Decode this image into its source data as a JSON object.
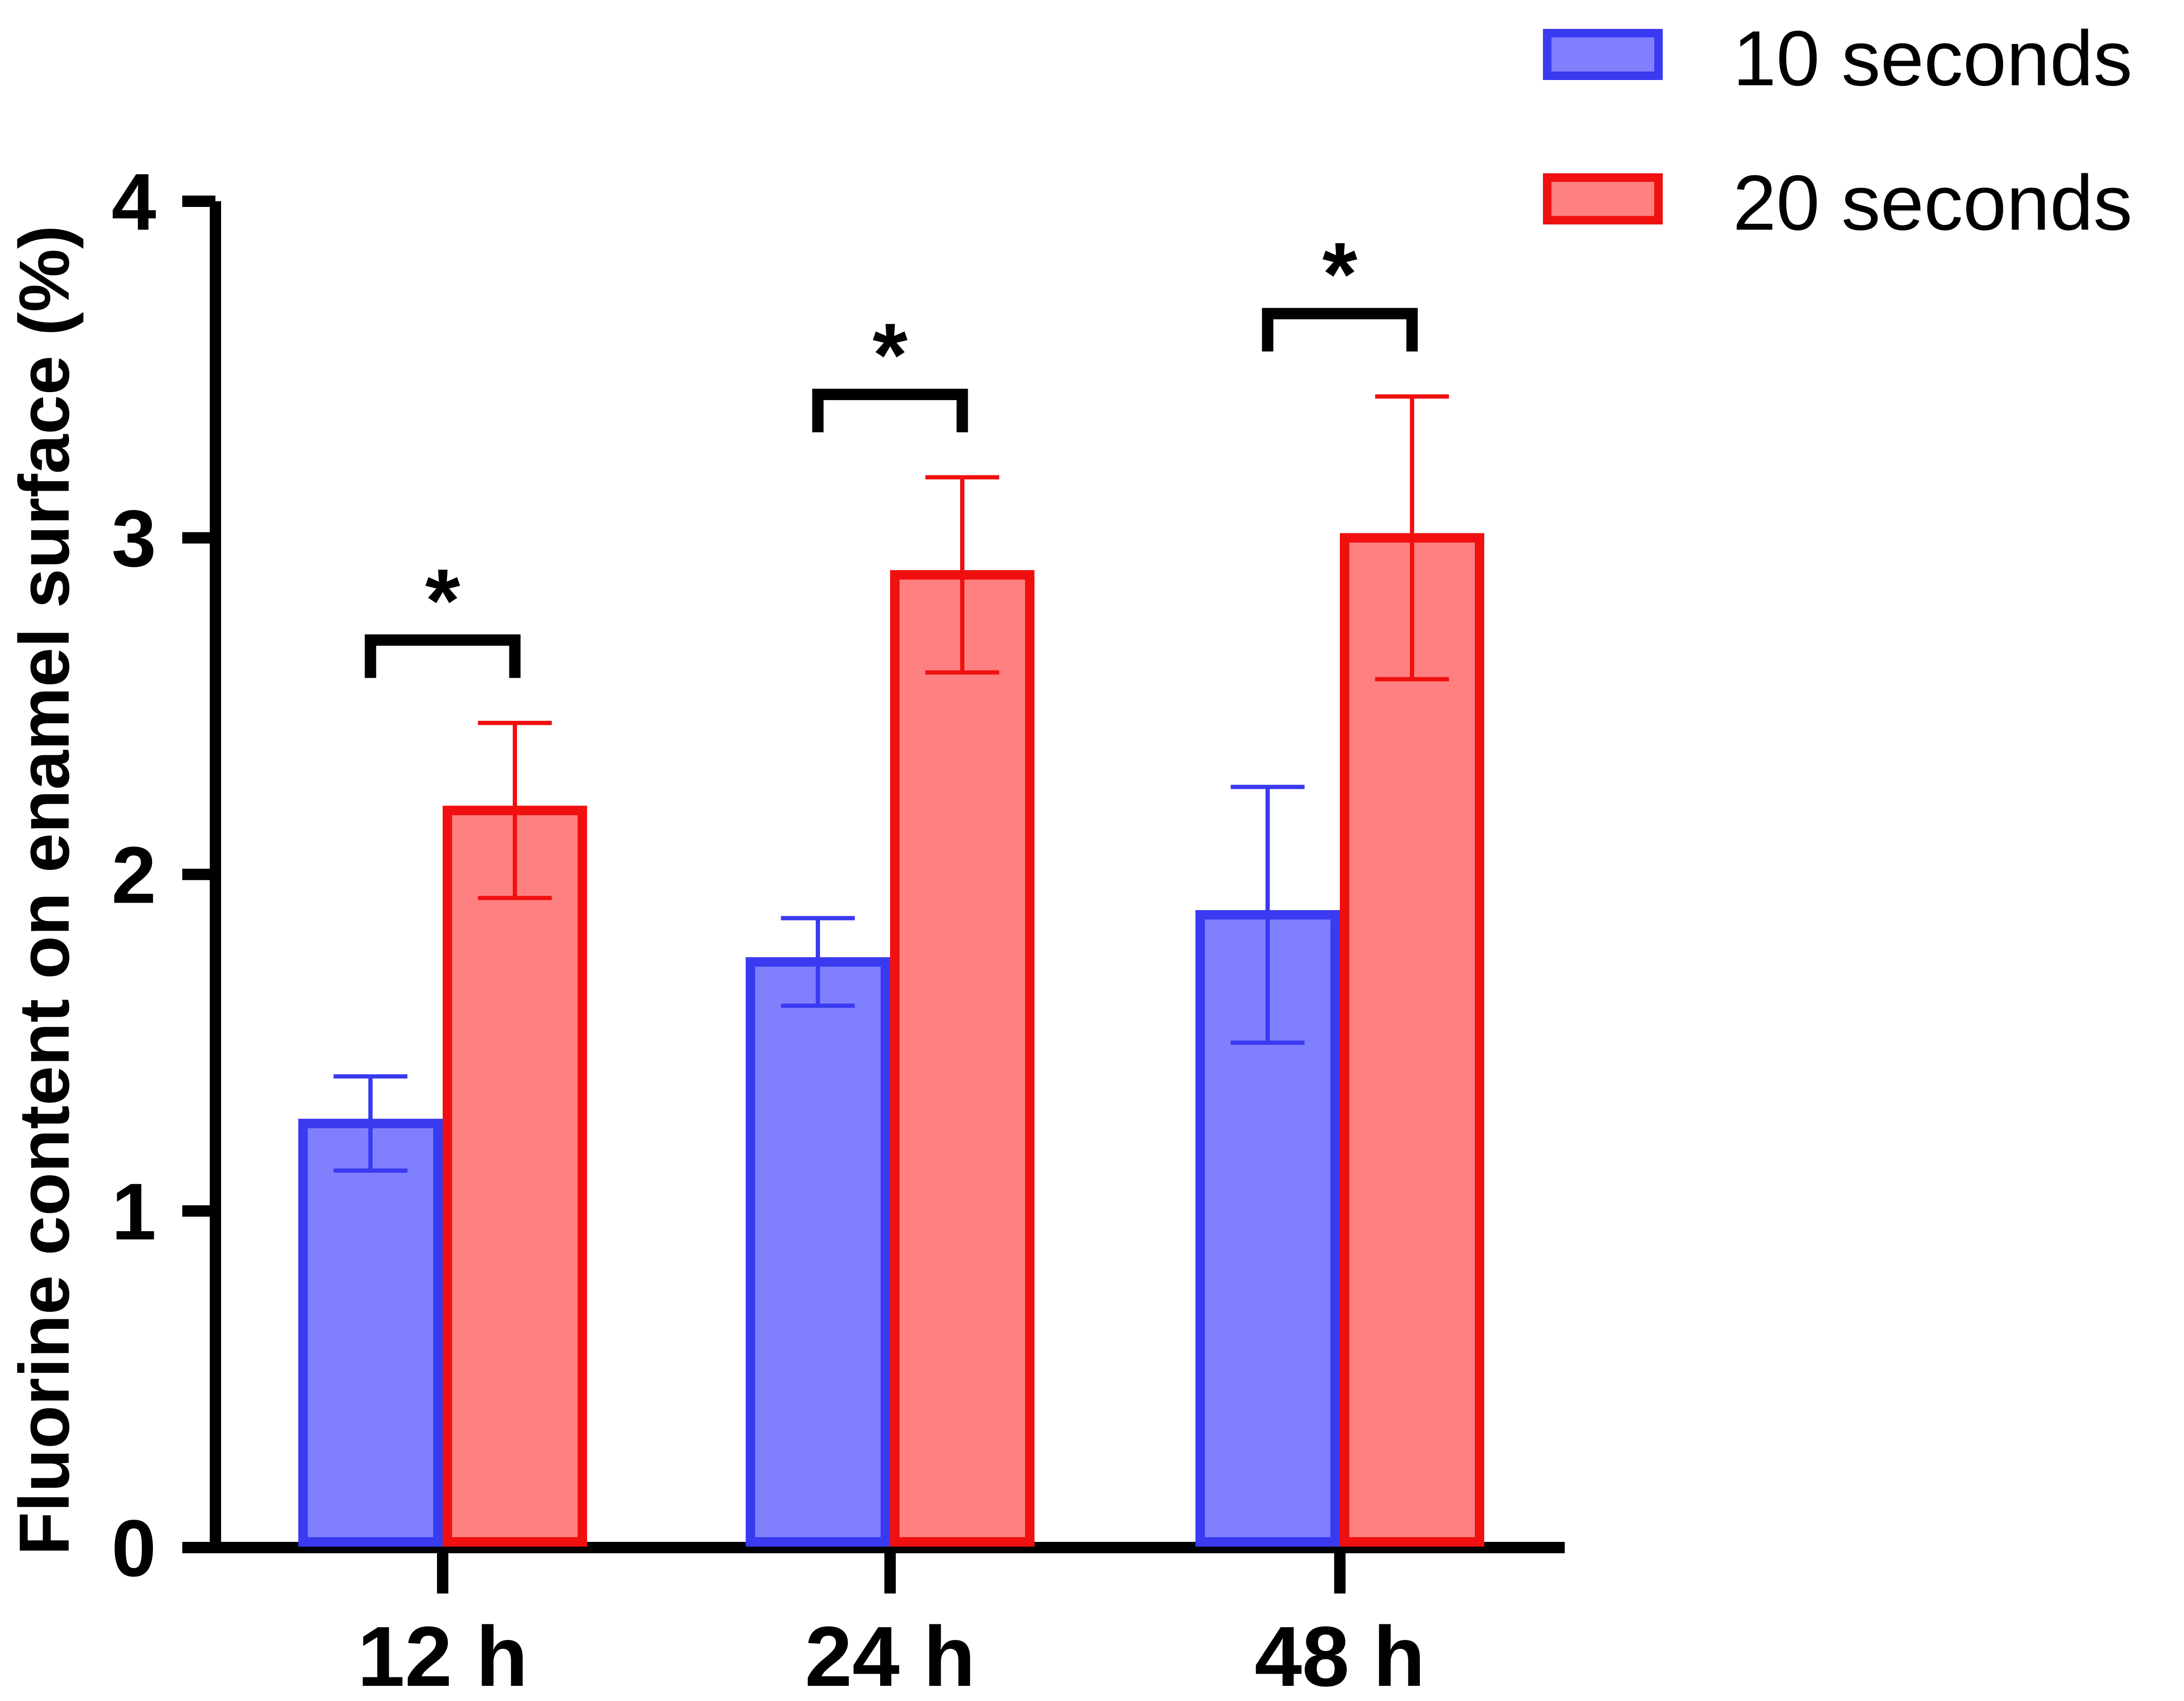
{
  "chart_data": {
    "type": "bar",
    "title": "",
    "xlabel": "",
    "ylabel": "Fluorine content on enamel surface (%)",
    "ylim": [
      0,
      4
    ],
    "yticks": [
      "0",
      "1",
      "2",
      "3",
      "4"
    ],
    "categories": [
      "12 h",
      "24 h",
      "48 h"
    ],
    "series": [
      {
        "name": "10 seconds",
        "fill": "#8080ff",
        "stroke": "#3a3af0",
        "values": [
          1.26,
          1.74,
          1.88
        ],
        "errors": [
          0.14,
          0.13,
          0.38
        ]
      },
      {
        "name": "20 seconds",
        "fill": "#ff8080",
        "stroke": "#f01010",
        "values": [
          2.19,
          2.89,
          3.0
        ],
        "errors": [
          0.26,
          0.29,
          0.42
        ]
      }
    ],
    "significance": [
      {
        "category": "12 h",
        "label": "*"
      },
      {
        "category": "24 h",
        "label": "*"
      },
      {
        "category": "48 h",
        "label": "*"
      }
    ],
    "legend": {
      "position": "top-right"
    }
  }
}
